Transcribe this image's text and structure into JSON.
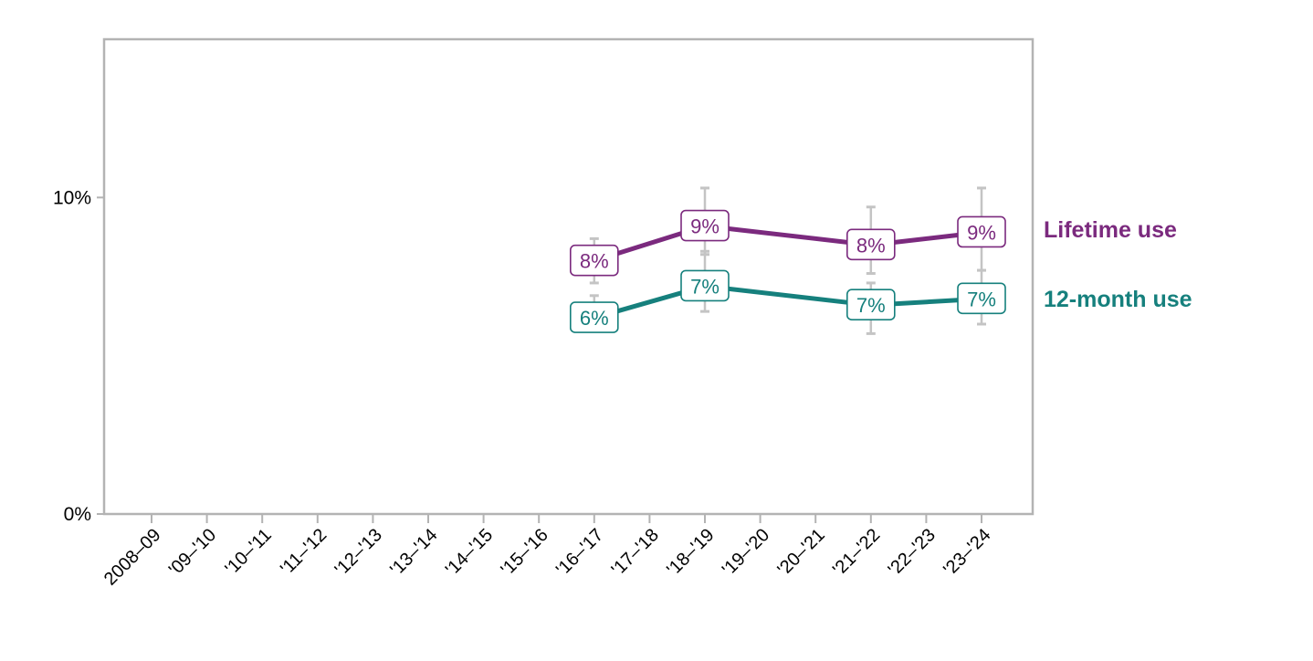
{
  "chart_data": {
    "type": "line",
    "title": "",
    "xlabel": "",
    "ylabel": "",
    "categories": [
      "2008–09",
      "'09–'10",
      "'10–'11",
      "'11–'12",
      "'12–'13",
      "'13–'14",
      "'14–'15",
      "'15–'16",
      "'16–'17",
      "'17–'18",
      "'18–'19",
      "'19–'20",
      "'20–'21",
      "'21–'22",
      "'22–'23",
      "'23–'24"
    ],
    "ylim": [
      0,
      15
    ],
    "y_ticks": [
      {
        "value": 0,
        "label": "0%"
      },
      {
        "value": 10,
        "label": "10%"
      }
    ],
    "grid": false,
    "legend": "right, direct labels at line ends",
    "series": [
      {
        "name": "Lifetime use",
        "color": "#7b2a7e",
        "points": [
          {
            "x": "'16–'17",
            "y": 8.0,
            "low": 7.3,
            "high": 8.7,
            "label": "8%"
          },
          {
            "x": "'18–'19",
            "y": 9.1,
            "low": 8.2,
            "high": 10.3,
            "label": "9%"
          },
          {
            "x": "'21–'22",
            "y": 8.5,
            "low": 7.6,
            "high": 9.7,
            "label": "8%"
          },
          {
            "x": "'23–'24",
            "y": 8.9,
            "low": 7.7,
            "high": 10.3,
            "label": "9%"
          }
        ]
      },
      {
        "name": "12-month use",
        "color": "#16807d",
        "points": [
          {
            "x": "'16–'17",
            "y": 6.2,
            "low": 5.8,
            "high": 6.9,
            "label": "6%"
          },
          {
            "x": "'18–'19",
            "y": 7.2,
            "low": 6.4,
            "high": 8.3,
            "label": "7%"
          },
          {
            "x": "'21–'22",
            "y": 6.6,
            "low": 5.7,
            "high": 7.3,
            "label": "7%"
          },
          {
            "x": "'23–'24",
            "y": 6.8,
            "low": 6.0,
            "high": 7.7,
            "label": "7%"
          }
        ]
      }
    ],
    "colors": {
      "axis": "#b3b3b3",
      "error_bar": "#c4c4c4",
      "text": "#000000",
      "label_bg": "#ffffff"
    }
  }
}
